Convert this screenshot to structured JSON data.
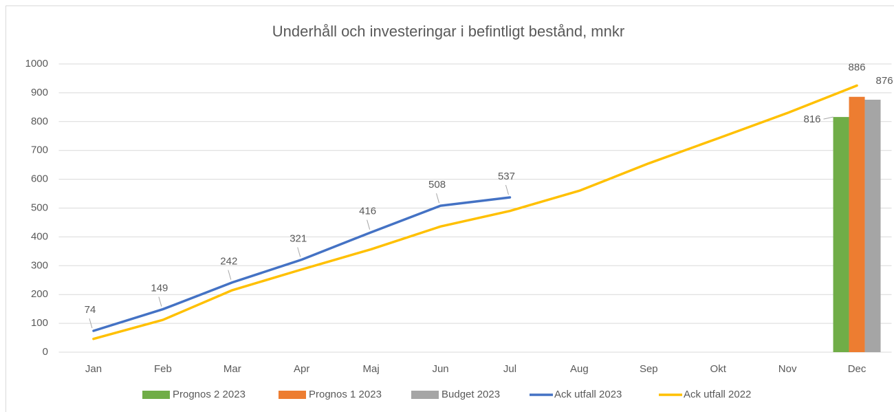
{
  "chart_data": {
    "type": "combo",
    "title": "Underhåll och investeringar i befintligt bestånd, mnkr",
    "categories": [
      "Jan",
      "Feb",
      "Mar",
      "Apr",
      "Maj",
      "Jun",
      "Jul",
      "Aug",
      "Sep",
      "Okt",
      "Nov",
      "Dec"
    ],
    "series": [
      {
        "name": "Prognos 2 2023",
        "type": "bar",
        "color": "#70ad47",
        "data_labels": true,
        "values": [
          null,
          null,
          null,
          null,
          null,
          null,
          null,
          null,
          null,
          null,
          null,
          816
        ]
      },
      {
        "name": "Prognos 1 2023",
        "type": "bar",
        "color": "#ed7d31",
        "data_labels": true,
        "values": [
          null,
          null,
          null,
          null,
          null,
          null,
          null,
          null,
          null,
          null,
          null,
          886
        ]
      },
      {
        "name": "Budget 2023",
        "type": "bar",
        "color": "#a5a5a5",
        "data_labels": true,
        "values": [
          null,
          null,
          null,
          null,
          null,
          null,
          null,
          null,
          null,
          null,
          null,
          876
        ]
      },
      {
        "name": "Ack utfall 2023",
        "type": "line",
        "color": "#4472c4",
        "data_labels": true,
        "values": [
          74,
          149,
          242,
          321,
          416,
          508,
          537,
          null,
          null,
          null,
          null,
          null
        ]
      },
      {
        "name": "Ack utfall 2022",
        "type": "line",
        "color": "#ffc000",
        "data_labels": false,
        "values": [
          46,
          112,
          215,
          287,
          357,
          436,
          490,
          560,
          655,
          742,
          830,
          925
        ]
      }
    ],
    "ylim": [
      0,
      1000
    ],
    "yticks": [
      0,
      100,
      200,
      300,
      400,
      500,
      600,
      700,
      800,
      900,
      1000
    ],
    "grid": true,
    "legend": "bottom"
  }
}
